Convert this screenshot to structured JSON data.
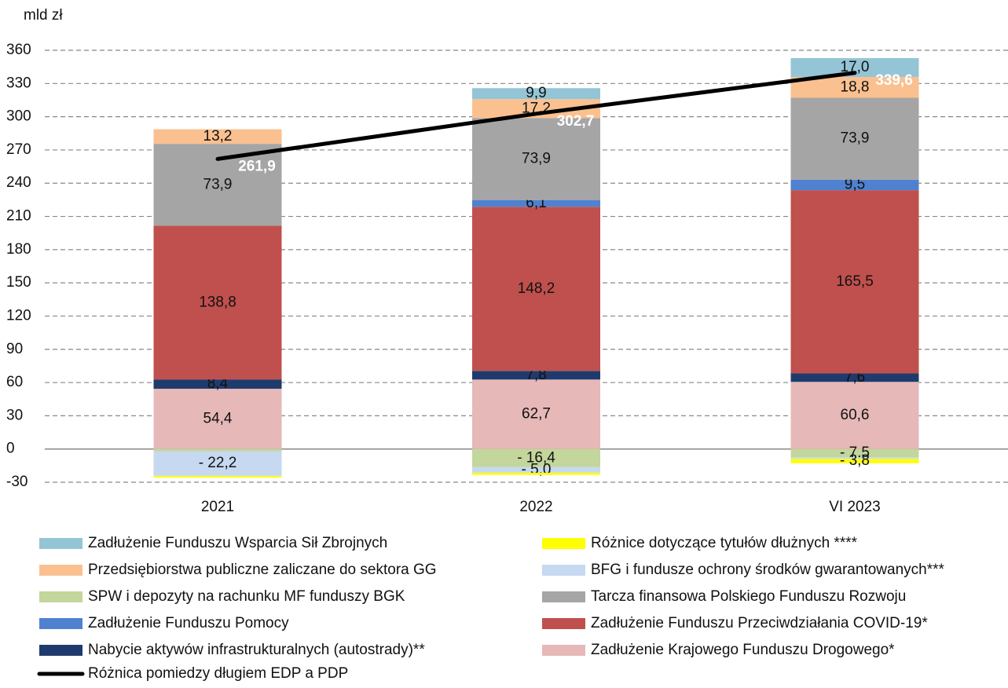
{
  "chart_data": {
    "type": "stacked_bar_line",
    "y_label": "mld zł",
    "categories": [
      "2021",
      "2022",
      "VI 2023"
    ],
    "ylim": [
      -30,
      360
    ],
    "yticks": [
      -30,
      0,
      30,
      60,
      90,
      120,
      150,
      180,
      210,
      240,
      270,
      300,
      330,
      360
    ],
    "grid": true,
    "series": [
      {
        "name": "Zadłużenie Krajowego Funduszu Drogowego*",
        "color": "#e6b8b7",
        "values": [
          54.4,
          62.7,
          60.6
        ],
        "value_labels": [
          "54,4",
          "62,7",
          "60,6"
        ]
      },
      {
        "name": "Nabycie aktywów infrastrukturalnych (autostrady)**",
        "color": "#1f3b6e",
        "values": [
          8.4,
          7.8,
          7.6
        ],
        "value_labels": [
          "8,4",
          "7,8",
          "7,6"
        ]
      },
      {
        "name": "Zadłużenie Funduszu Przeciwdziałania COVID-19*",
        "color": "#c0504d",
        "values": [
          138.8,
          148.2,
          165.5
        ],
        "value_labels": [
          "138,8",
          "148,2",
          "165,5"
        ]
      },
      {
        "name": "Zadłużenie Funduszu Pomocy",
        "color": "#4f81d0",
        "values": [
          0,
          6.1,
          9.5
        ],
        "value_labels": [
          null,
          "6,1",
          "9,5"
        ]
      },
      {
        "name": "Tarcza finansowa Polskiego Funduszu Rozwoju",
        "color": "#a5a5a5",
        "values": [
          73.9,
          73.9,
          73.9
        ],
        "value_labels": [
          "73,9",
          "73,9",
          "73,9"
        ]
      },
      {
        "name": "Przedsiębiorstwa publiczne zaliczane do sektora GG",
        "color": "#fac090",
        "values": [
          13.2,
          17.2,
          18.8
        ],
        "value_labels": [
          "13,2",
          "17,2",
          "18,8"
        ]
      },
      {
        "name": "Zadłużenie Funduszu Wsparcia Sił Zbrojnych",
        "color": "#93c5d6",
        "values": [
          0,
          9.9,
          17.0
        ],
        "value_labels": [
          null,
          "9,9",
          "17,0"
        ]
      },
      {
        "name": "SPW i depozyty na rachunku MF funduszy BGK",
        "color": "#c3d69b",
        "values": [
          -2.0,
          -16.4,
          -7.5
        ],
        "value_labels": [
          null,
          "- 16,4",
          "- 7,5"
        ]
      },
      {
        "name": "BFG i fundusze ochrony środków gwarantowanych***",
        "color": "#c6d9f1",
        "values": [
          -22.2,
          -5.0,
          -1.5
        ],
        "value_labels": [
          "- 22,2",
          "- 5,0",
          null
        ]
      },
      {
        "name": "Różnice dotyczące tytułów dłużnych ****",
        "color": "#ffff00",
        "values": [
          -1.5,
          -2.0,
          -3.8
        ],
        "value_labels": [
          null,
          null,
          "- 3,8"
        ]
      }
    ],
    "line": {
      "name": "Różnica pomiedzy długiem EDP a PDP",
      "color": "#000000",
      "values": [
        261.9,
        302.7,
        339.6
      ],
      "value_labels": [
        "261,9",
        "302,7",
        "339,6"
      ]
    }
  }
}
